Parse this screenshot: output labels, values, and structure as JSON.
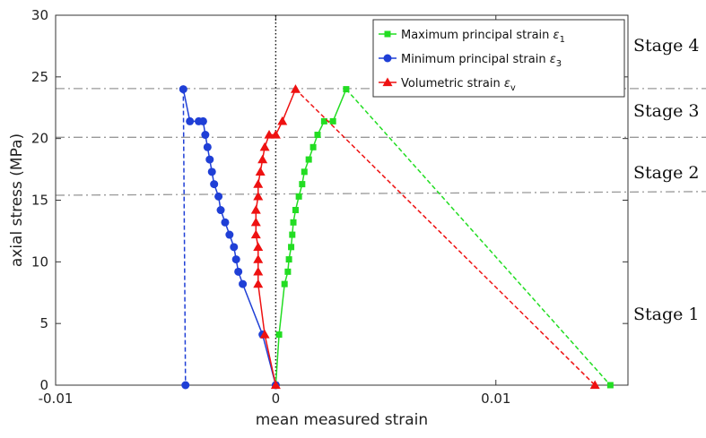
{
  "chart_data": {
    "type": "line",
    "title": "",
    "xlabel": "mean measured strain",
    "ylabel": "axial stress (MPa)",
    "xlim": [
      -0.01,
      0.016
    ],
    "ylim": [
      0,
      30
    ],
    "xticks": [
      -0.01,
      0,
      0.01
    ],
    "xtick_labels": [
      "-0.01",
      "0",
      "0.01"
    ],
    "yticks": [
      0,
      5,
      10,
      15,
      20,
      25,
      30
    ],
    "ytick_labels": [
      "0",
      "5",
      "10",
      "15",
      "20",
      "25",
      "30"
    ],
    "grid": false,
    "legend_position": "top-right",
    "series": [
      {
        "name": "Maximum principal strain ε1",
        "legend_main": "Maximum principal strain ",
        "legend_symbol": "ε",
        "legend_sub": "1",
        "color": "#22dd22",
        "marker": "square",
        "x": [
          0,
          0.00015,
          0.0004,
          0.00055,
          0.0006,
          0.0007,
          0.00075,
          0.0008,
          0.0009,
          0.00105,
          0.0012,
          0.0013,
          0.0015,
          0.0017,
          0.0019,
          0.0022,
          0.0026,
          0.0032
        ],
        "y": [
          0,
          4.1,
          8.2,
          9.2,
          10.2,
          11.2,
          12.2,
          13.2,
          14.2,
          15.3,
          16.3,
          17.3,
          18.3,
          19.3,
          20.3,
          21.4,
          21.4,
          24.0
        ],
        "unload_x": [
          0.0032,
          0.0152
        ],
        "unload_y": [
          24.0,
          0
        ]
      },
      {
        "name": "Minimum principal strain ε3",
        "legend_main": "Minimum principal strain ",
        "legend_symbol": "ε",
        "legend_sub": "3",
        "color": "#1f3fd6",
        "marker": "circle",
        "x": [
          0,
          -0.0006,
          -0.0015,
          -0.0017,
          -0.0018,
          -0.0019,
          -0.0021,
          -0.0023,
          -0.0025,
          -0.0026,
          -0.0028,
          -0.0029,
          -0.003,
          -0.0031,
          -0.0032,
          -0.0033,
          -0.0035,
          -0.0039,
          -0.0042
        ],
        "y": [
          0,
          4.1,
          8.2,
          9.2,
          10.2,
          11.2,
          12.2,
          13.2,
          14.2,
          15.3,
          16.3,
          17.3,
          18.3,
          19.3,
          20.3,
          21.4,
          21.4,
          21.4,
          24.0
        ],
        "unload_x": [
          -0.0042,
          -0.0041
        ],
        "unload_y": [
          24.0,
          0
        ]
      },
      {
        "name": "Volumetric strain εv",
        "legend_main": "Volumetric strain ",
        "legend_symbol": "ε",
        "legend_sub": "v",
        "color": "#ee1111",
        "marker": "triangle",
        "x": [
          0,
          -0.0005,
          -0.0008,
          -0.0008,
          -0.0008,
          -0.0008,
          -0.0009,
          -0.0009,
          -0.0009,
          -0.0008,
          -0.0008,
          -0.0007,
          -0.0006,
          -0.0005,
          -0.0003,
          0,
          0.0003,
          0.0009
        ],
        "y": [
          0,
          4.1,
          8.2,
          9.2,
          10.2,
          11.2,
          12.2,
          13.2,
          14.2,
          15.3,
          16.3,
          17.3,
          18.3,
          19.3,
          20.3,
          20.3,
          21.4,
          24.0
        ],
        "unload_x": [
          0.0009,
          0.0145
        ],
        "unload_y": [
          24.0,
          0
        ]
      }
    ],
    "stage_lines": [
      {
        "y1": 24.05,
        "y2": 24.05
      },
      {
        "y1": 20.1,
        "y2": 20.1
      },
      {
        "y1": 15.4,
        "y2": 15.7
      }
    ],
    "stage_labels": [
      {
        "text": "Stage 4",
        "y": 27.6
      },
      {
        "text": "Stage 3",
        "y": 22.3
      },
      {
        "text": "Stage 2",
        "y": 17.3
      },
      {
        "text": "Stage 1",
        "y": 5.8
      }
    ],
    "zero_reference_line": {
      "x": 0,
      "style": "dotted"
    }
  }
}
